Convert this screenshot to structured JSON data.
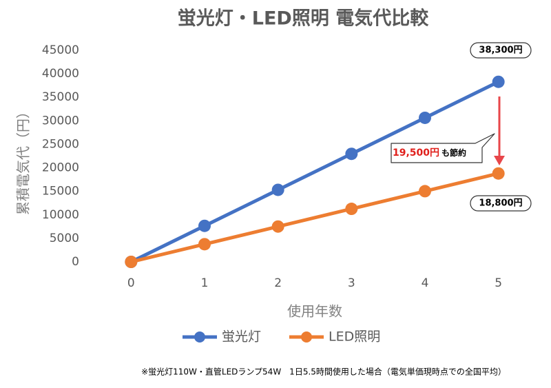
{
  "chart_data": {
    "type": "line",
    "title": "蛍光灯・LED照明 電気代比較",
    "x_label": "使用年数",
    "y_label": "累積電気代（円）",
    "x": [
      0,
      1,
      2,
      3,
      4,
      5
    ],
    "xlim": [
      -0.5,
      5.5
    ],
    "ylim": [
      0,
      45000
    ],
    "yticks": [
      0,
      5000,
      10000,
      15000,
      20000,
      25000,
      30000,
      35000,
      40000,
      45000
    ],
    "grid": false,
    "legend": "bottom",
    "series": [
      {
        "name": "蛍光灯",
        "color": "#4472c4",
        "values": [
          0,
          7660,
          15320,
          22980,
          30640,
          38300
        ]
      },
      {
        "name": "LED照明",
        "color": "#ed7d31",
        "values": [
          0,
          3760,
          7520,
          11280,
          15040,
          18800
        ]
      }
    ],
    "annotations": [
      "38,300円",
      "18,800円"
    ],
    "saving": {
      "amount": "19,500円",
      "suffix": "も節約"
    },
    "footnote": "※蛍光灯110W・直管LEDランプ54W　1日5.5時間使用した場合（電気単価現時点での全国平均）"
  }
}
